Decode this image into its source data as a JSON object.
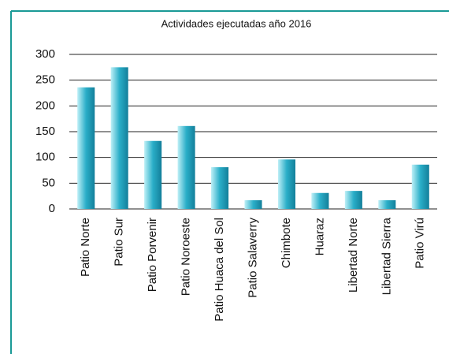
{
  "chart_data": {
    "type": "bar",
    "title": "Actividades ejecutadas año 2016",
    "categories": [
      "Patio Norte",
      "Patio Sur",
      "Patio Porvenir",
      "Patio Noroeste",
      "Patio Huaca del Sol",
      "Patio Salaverry",
      "Chimbote",
      "Huaraz",
      "Libertad Norte",
      "Libertad Sierra",
      "Patio Virú"
    ],
    "values": [
      236,
      275,
      132,
      161,
      81,
      17,
      96,
      31,
      35,
      17,
      86
    ],
    "color": "#2aaec8",
    "ylim": [
      0,
      300
    ],
    "yticks": [
      0,
      50,
      100,
      150,
      200,
      250,
      300
    ],
    "grid": true
  }
}
